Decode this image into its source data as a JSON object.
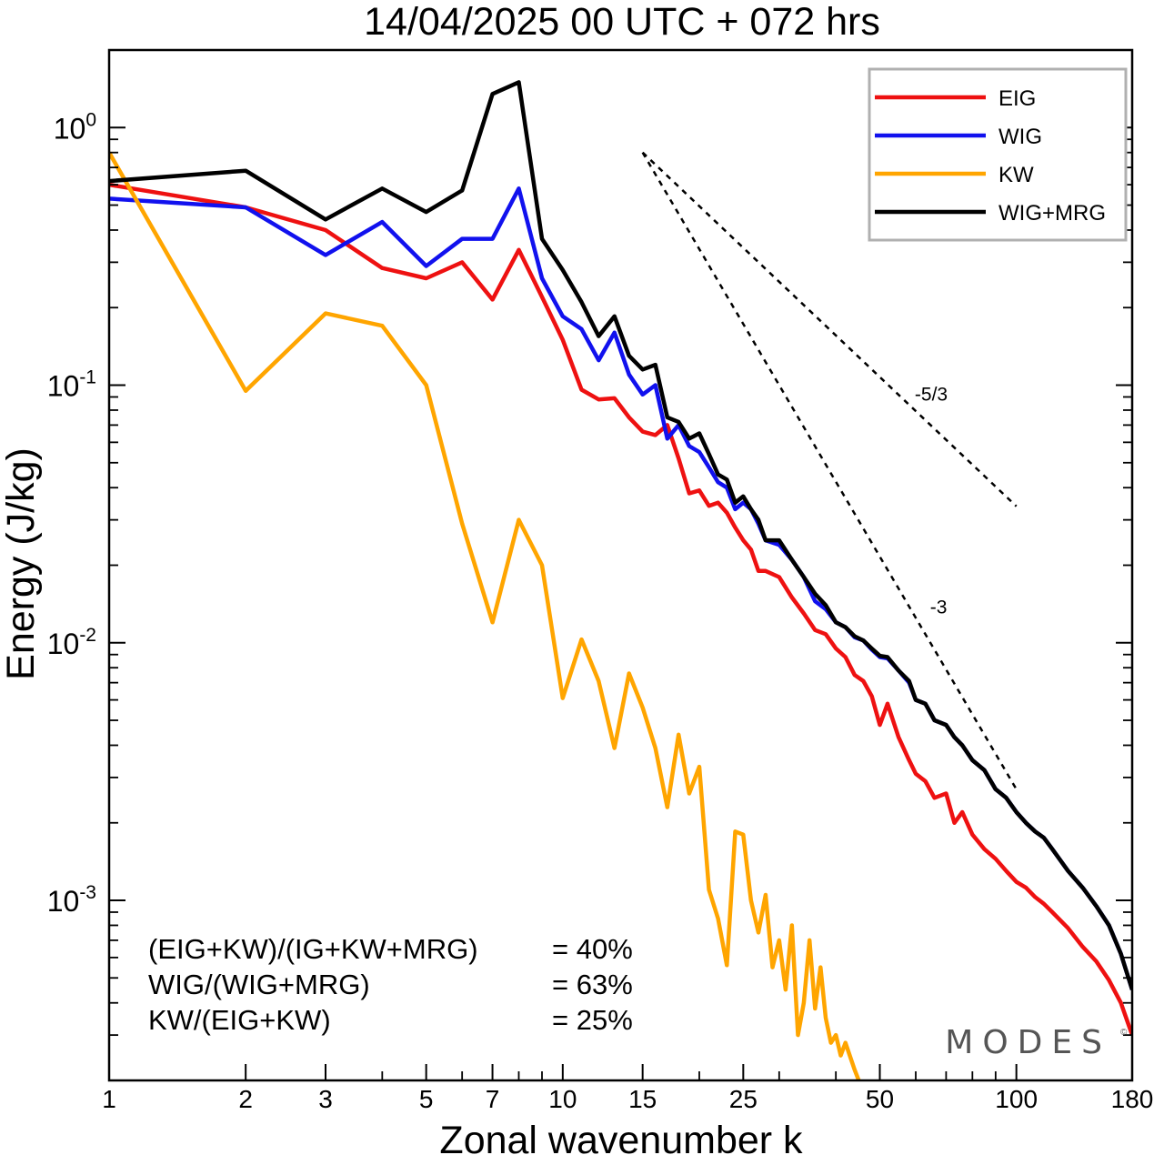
{
  "chart_data": {
    "type": "line",
    "title": "14/04/2025  00 UTC  + 072 hrs",
    "xlabel": "Zonal wavenumber k",
    "ylabel": "Energy (J/kg)",
    "x_scale": "log",
    "y_scale": "log",
    "xlim": [
      1,
      180
    ],
    "ylim": [
      0.0002,
      2.0
    ],
    "x_ticks": [
      1,
      2,
      3,
      5,
      7,
      10,
      15,
      25,
      50,
      100,
      180
    ],
    "y_ticks": [
      {
        "value": 1,
        "base": "10",
        "exp": "0"
      },
      {
        "value": 0.1,
        "base": "10",
        "exp": "-1"
      },
      {
        "value": 0.01,
        "base": "10",
        "exp": "-2"
      },
      {
        "value": 0.001,
        "base": "10",
        "exp": "-3"
      }
    ],
    "grid": false,
    "legend_position": "top-right",
    "series": [
      {
        "name": "EIG",
        "color": "#ee1111",
        "points": [
          [
            1,
            0.6
          ],
          [
            2,
            0.49
          ],
          [
            3,
            0.4
          ],
          [
            4,
            0.285
          ],
          [
            5,
            0.26
          ],
          [
            6,
            0.3
          ],
          [
            7,
            0.215
          ],
          [
            8,
            0.335
          ],
          [
            9,
            0.22
          ],
          [
            10,
            0.15
          ],
          [
            11,
            0.096
          ],
          [
            12,
            0.088
          ],
          [
            13,
            0.089
          ],
          [
            14,
            0.075
          ],
          [
            15,
            0.066
          ],
          [
            16,
            0.064
          ],
          [
            17,
            0.07
          ],
          [
            18,
            0.052
          ],
          [
            19,
            0.038
          ],
          [
            20,
            0.039
          ],
          [
            21,
            0.034
          ],
          [
            22,
            0.035
          ],
          [
            23,
            0.032
          ],
          [
            24,
            0.028
          ],
          [
            25,
            0.025
          ],
          [
            26,
            0.023
          ],
          [
            27,
            0.019
          ],
          [
            28,
            0.019
          ],
          [
            30,
            0.018
          ],
          [
            32,
            0.015
          ],
          [
            34,
            0.013
          ],
          [
            36,
            0.0112
          ],
          [
            38,
            0.0108
          ],
          [
            40,
            0.0095
          ],
          [
            42,
            0.0088
          ],
          [
            44,
            0.0075
          ],
          [
            46,
            0.0071
          ],
          [
            48,
            0.0062
          ],
          [
            50,
            0.0048
          ],
          [
            52,
            0.0058
          ],
          [
            55,
            0.0043
          ],
          [
            58,
            0.0035
          ],
          [
            60,
            0.0031
          ],
          [
            63,
            0.0029
          ],
          [
            66,
            0.0025
          ],
          [
            70,
            0.0026
          ],
          [
            73,
            0.002
          ],
          [
            76,
            0.0022
          ],
          [
            80,
            0.0018
          ],
          [
            85,
            0.00158
          ],
          [
            90,
            0.00145
          ],
          [
            95,
            0.0013
          ],
          [
            100,
            0.00118
          ],
          [
            105,
            0.00112
          ],
          [
            110,
            0.00103
          ],
          [
            115,
            0.00097
          ],
          [
            120,
            0.0009
          ],
          [
            130,
            0.00078
          ],
          [
            140,
            0.00066
          ],
          [
            150,
            0.00058
          ],
          [
            160,
            0.00049
          ],
          [
            170,
            0.0004
          ],
          [
            180,
            0.0003
          ]
        ]
      },
      {
        "name": "WIG",
        "color": "#1111ee",
        "points": [
          [
            1,
            0.53
          ],
          [
            2,
            0.49
          ],
          [
            3,
            0.32
          ],
          [
            4,
            0.43
          ],
          [
            5,
            0.29
          ],
          [
            6,
            0.37
          ],
          [
            7,
            0.37
          ],
          [
            8,
            0.58
          ],
          [
            9,
            0.26
          ],
          [
            10,
            0.185
          ],
          [
            11,
            0.165
          ],
          [
            12,
            0.125
          ],
          [
            13,
            0.16
          ],
          [
            14,
            0.11
          ],
          [
            15,
            0.092
          ],
          [
            16,
            0.1
          ],
          [
            17,
            0.062
          ],
          [
            18,
            0.07
          ],
          [
            19,
            0.058
          ],
          [
            20,
            0.055
          ],
          [
            21,
            0.048
          ],
          [
            22,
            0.042
          ],
          [
            23,
            0.04
          ],
          [
            24,
            0.033
          ],
          [
            25,
            0.035
          ],
          [
            26,
            0.033
          ],
          [
            27,
            0.029
          ],
          [
            28,
            0.025
          ],
          [
            30,
            0.024
          ],
          [
            32,
            0.021
          ],
          [
            34,
            0.018
          ],
          [
            36,
            0.0145
          ],
          [
            38,
            0.0135
          ],
          [
            40,
            0.012
          ],
          [
            42,
            0.0115
          ],
          [
            44,
            0.0105
          ],
          [
            46,
            0.0102
          ],
          [
            48,
            0.0094
          ],
          [
            50,
            0.0088
          ],
          [
            52,
            0.0087
          ],
          [
            55,
            0.0078
          ],
          [
            58,
            0.007
          ],
          [
            60,
            0.006
          ],
          [
            63,
            0.0058
          ],
          [
            66,
            0.005
          ],
          [
            70,
            0.0048
          ],
          [
            73,
            0.0043
          ],
          [
            76,
            0.004
          ],
          [
            80,
            0.0035
          ],
          [
            85,
            0.0032
          ],
          [
            90,
            0.0027
          ],
          [
            95,
            0.0025
          ],
          [
            100,
            0.0022
          ],
          [
            105,
            0.002
          ],
          [
            110,
            0.00185
          ],
          [
            115,
            0.00175
          ],
          [
            120,
            0.00158
          ],
          [
            130,
            0.0013
          ],
          [
            140,
            0.00112
          ],
          [
            150,
            0.00095
          ],
          [
            160,
            0.0008
          ],
          [
            170,
            0.00062
          ],
          [
            180,
            0.00045
          ]
        ]
      },
      {
        "name": "KW",
        "color": "#ffa500",
        "points": [
          [
            1,
            0.8
          ],
          [
            2,
            0.095
          ],
          [
            3,
            0.19
          ],
          [
            4,
            0.17
          ],
          [
            5,
            0.1
          ],
          [
            6,
            0.029
          ],
          [
            7,
            0.012
          ],
          [
            8,
            0.03
          ],
          [
            9,
            0.02
          ],
          [
            10,
            0.0061
          ],
          [
            11,
            0.0103
          ],
          [
            12,
            0.0071
          ],
          [
            13,
            0.0039
          ],
          [
            14,
            0.0076
          ],
          [
            15,
            0.0056
          ],
          [
            16,
            0.0039
          ],
          [
            17,
            0.0023
          ],
          [
            18,
            0.0044
          ],
          [
            19,
            0.0026
          ],
          [
            20,
            0.0033
          ],
          [
            21,
            0.0011
          ],
          [
            22,
            0.00085
          ],
          [
            23,
            0.00056
          ],
          [
            24,
            0.00185
          ],
          [
            25,
            0.0018
          ],
          [
            26,
            0.001
          ],
          [
            27,
            0.00075
          ],
          [
            28,
            0.00105
          ],
          [
            29,
            0.00055
          ],
          [
            30,
            0.0007
          ],
          [
            31,
            0.00045
          ],
          [
            32,
            0.0008
          ],
          [
            33,
            0.0003
          ],
          [
            34,
            0.0004
          ],
          [
            35,
            0.0007
          ],
          [
            36,
            0.00038
          ],
          [
            37,
            0.00055
          ],
          [
            38,
            0.00035
          ],
          [
            39,
            0.00028
          ],
          [
            40,
            0.0003
          ],
          [
            41,
            0.00025
          ],
          [
            42,
            0.00028
          ],
          [
            44,
            0.00022
          ],
          [
            46,
            0.00018
          ],
          [
            48,
            0.00015
          ]
        ]
      },
      {
        "name": "WIG+MRG",
        "color": "#000000",
        "points": [
          [
            1,
            0.62
          ],
          [
            2,
            0.68
          ],
          [
            3,
            0.44
          ],
          [
            4,
            0.58
          ],
          [
            5,
            0.47
          ],
          [
            6,
            0.57
          ],
          [
            7,
            1.35
          ],
          [
            8,
            1.5
          ],
          [
            9,
            0.37
          ],
          [
            10,
            0.28
          ],
          [
            11,
            0.21
          ],
          [
            12,
            0.155
          ],
          [
            13,
            0.185
          ],
          [
            14,
            0.13
          ],
          [
            15,
            0.115
          ],
          [
            16,
            0.12
          ],
          [
            17,
            0.075
          ],
          [
            18,
            0.072
          ],
          [
            19,
            0.062
          ],
          [
            20,
            0.065
          ],
          [
            21,
            0.054
          ],
          [
            22,
            0.045
          ],
          [
            23,
            0.043
          ],
          [
            24,
            0.035
          ],
          [
            25,
            0.037
          ],
          [
            26,
            0.033
          ],
          [
            27,
            0.03
          ],
          [
            28,
            0.025
          ],
          [
            30,
            0.025
          ],
          [
            32,
            0.021
          ],
          [
            34,
            0.018
          ],
          [
            36,
            0.0155
          ],
          [
            38,
            0.014
          ],
          [
            40,
            0.012
          ],
          [
            42,
            0.0115
          ],
          [
            44,
            0.0106
          ],
          [
            46,
            0.0102
          ],
          [
            48,
            0.0095
          ],
          [
            50,
            0.0089
          ],
          [
            52,
            0.0088
          ],
          [
            55,
            0.0078
          ],
          [
            58,
            0.0071
          ],
          [
            60,
            0.006
          ],
          [
            63,
            0.0058
          ],
          [
            66,
            0.005
          ],
          [
            70,
            0.0048
          ],
          [
            73,
            0.0043
          ],
          [
            76,
            0.004
          ],
          [
            80,
            0.0035
          ],
          [
            85,
            0.0032
          ],
          [
            90,
            0.0027
          ],
          [
            95,
            0.0025
          ],
          [
            100,
            0.0022
          ],
          [
            105,
            0.002
          ],
          [
            110,
            0.00185
          ],
          [
            115,
            0.00175
          ],
          [
            120,
            0.00158
          ],
          [
            130,
            0.0013
          ],
          [
            140,
            0.00112
          ],
          [
            150,
            0.00095
          ],
          [
            160,
            0.0008
          ],
          [
            170,
            0.00062
          ],
          [
            180,
            0.00045
          ]
        ]
      }
    ],
    "reference_slopes": [
      {
        "label": "-5/3",
        "slope": -1.6667,
        "k_start": 15,
        "k_end": 100,
        "e_start": 0.8
      },
      {
        "label": "-3",
        "slope": -3,
        "k_start": 15,
        "k_end": 100,
        "e_start": 0.8
      }
    ],
    "annotations": [
      {
        "label": "(EIG+KW)/(IG+KW+MRG)",
        "value": "= 40%"
      },
      {
        "label": "WIG/(WIG+MRG)",
        "value": "= 63%"
      },
      {
        "label": "KW/(EIG+KW)",
        "value": "= 25%"
      }
    ],
    "watermark": "MODES"
  }
}
